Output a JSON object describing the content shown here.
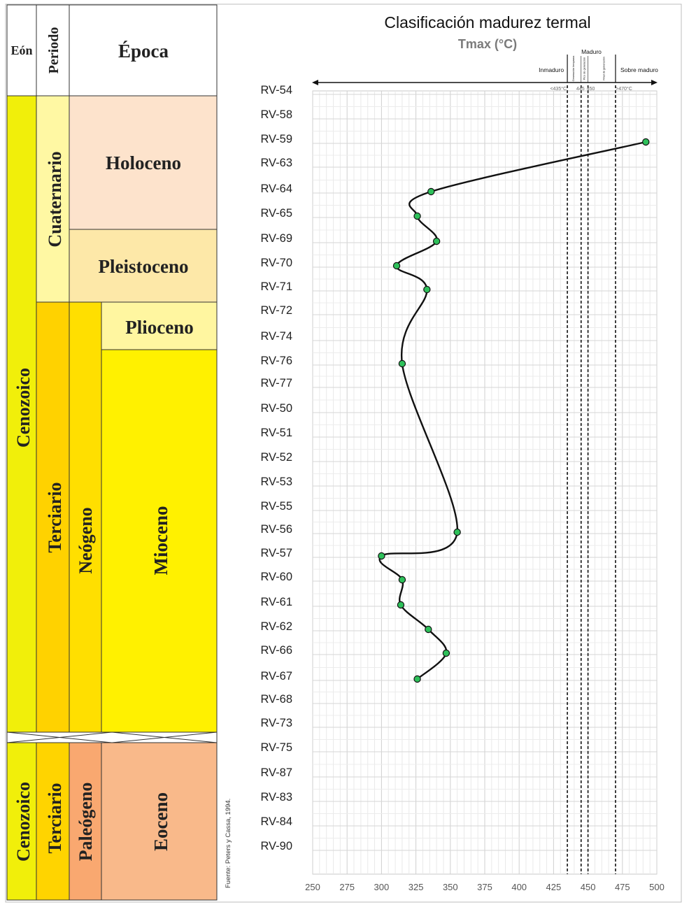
{
  "strat": {
    "headers": {
      "eon": "Eón",
      "period": "Periodo",
      "epoch": "Época"
    },
    "upper": {
      "eon": "Cenozoico",
      "period_q": "Cuaternario",
      "period_t": "Terciario",
      "subperiod": "Neógeno",
      "epochs": [
        "Holoceno",
        "Pleistoceno",
        "Plioceno",
        "Mioceno"
      ]
    },
    "lower": {
      "eon": "Cenozoico",
      "period": "Terciario",
      "subperiod": "Paleógeno",
      "epoch": "Eoceno"
    },
    "colors": {
      "eon": "#f1ef0a",
      "cuaternario": "#fff8a3",
      "terciario": "#ffd200",
      "neogeno": "#ffdf00",
      "holoceno": "#fde3cc",
      "pleistoceno": "#fde8a8",
      "plioceno": "#fff6a0",
      "mioceno": "#fff100",
      "paleogeno": "#f9a870",
      "eoceno": "#f9b98a",
      "terciario_low": "#ffd400"
    }
  },
  "source_note": "Fuente: Peters y Cassa, 1994.",
  "chart_data": {
    "type": "line",
    "title": "Clasificación madurez termal",
    "xlabel": "Tmax (°C)",
    "xlim": [
      250,
      500
    ],
    "xticks": [
      250,
      275,
      300,
      325,
      350,
      375,
      400,
      425,
      450,
      475,
      500
    ],
    "categories": [
      "RV-54",
      "RV-58",
      "RV-59",
      "RV-63",
      "RV-64",
      "RV-65",
      "RV-69",
      "RV-70",
      "RV-71",
      "RV-72",
      "RV-74",
      "RV-76",
      "RV-77",
      "RV-50",
      "RV-51",
      "RV-52",
      "RV-53",
      "RV-55",
      "RV-56",
      "RV-57",
      "RV-60",
      "RV-61",
      "RV-62",
      "RV-66",
      "RV-67",
      "RV-68",
      "RV-73",
      "RV-75",
      "RV-87",
      "RV-83",
      "RV-84",
      "RV-90"
    ],
    "series": [
      {
        "name": "Tmax",
        "color": "#2ec05a",
        "points": [
          {
            "sample": "RV-59",
            "value": 492
          },
          {
            "sample": "RV-64",
            "value": 336
          },
          {
            "sample": "RV-65",
            "value": 326
          },
          {
            "sample": "RV-69",
            "value": 340
          },
          {
            "sample": "RV-70",
            "value": 311
          },
          {
            "sample": "RV-71",
            "value": 333
          },
          {
            "sample": "RV-76",
            "value": 315
          },
          {
            "sample": "RV-56",
            "value": 355
          },
          {
            "sample": "RV-57",
            "value": 300
          },
          {
            "sample": "RV-60",
            "value": 315
          },
          {
            "sample": "RV-61",
            "value": 314
          },
          {
            "sample": "RV-62",
            "value": 334
          },
          {
            "sample": "RV-66",
            "value": 347
          },
          {
            "sample": "RV-67",
            "value": 326
          }
        ]
      }
    ],
    "maturity_lines": [
      435,
      445,
      450,
      470
    ],
    "zones": {
      "inmaduro": "Inmaduro",
      "maduro": "Maduro",
      "sobre": "Sobre maduro",
      "gen_temprana": "Generación temprana",
      "pico_gen": "Pico de generación",
      "final_gen": "Final de generación"
    },
    "threshold_labels": [
      "<435°C",
      "445",
      "450",
      ">470°C"
    ]
  }
}
